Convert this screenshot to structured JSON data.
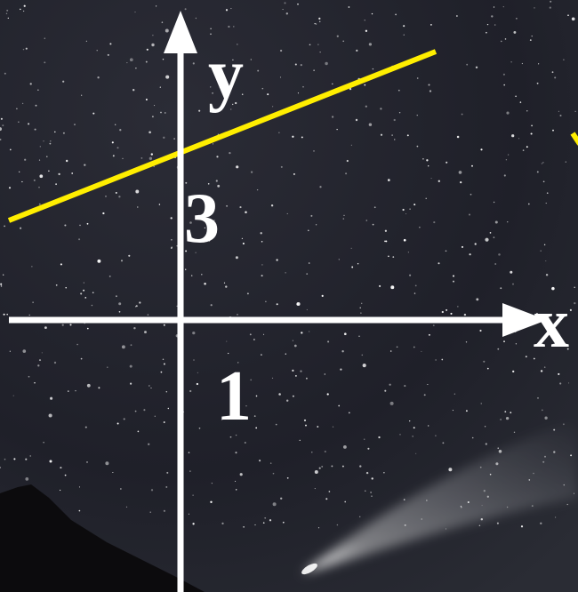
{
  "axes": {
    "y_label": "y",
    "x_label": "x"
  },
  "marks": [
    "3",
    "1"
  ]
}
